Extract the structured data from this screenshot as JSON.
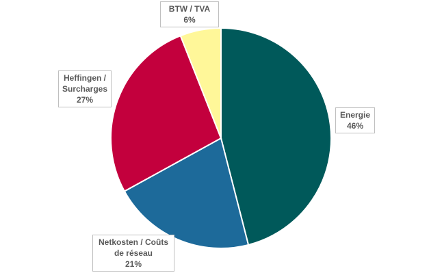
{
  "chart_data": {
    "type": "pie",
    "title": "",
    "start": "top, clockwise",
    "slices": [
      {
        "name": "Energie",
        "lines": [
          "Energie"
        ],
        "value": 46,
        "label": "46%",
        "color": "#00595A"
      },
      {
        "name": "Netkosten / Coûts de réseau",
        "lines": [
          "Netkosten / Coûts",
          "de réseau"
        ],
        "value": 21,
        "label": "21%",
        "color": "#1D6A9A"
      },
      {
        "name": "Heffingen / Surcharges",
        "lines": [
          "Heffingen /",
          "Surcharges"
        ],
        "value": 27,
        "label": "27%",
        "color": "#C3003D"
      },
      {
        "name": "BTW / TVA",
        "lines": [
          "BTW / TVA"
        ],
        "value": 6,
        "label": "6%",
        "color": "#FFF799"
      }
    ]
  }
}
